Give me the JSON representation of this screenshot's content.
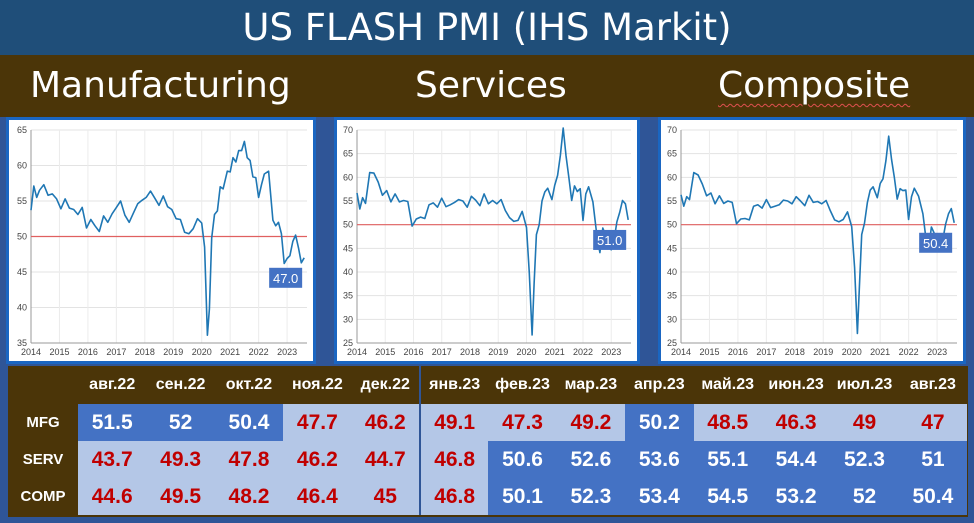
{
  "title": "US FLASH PMI (IHS Markit)",
  "sections": [
    "Manufacturing",
    "Services",
    "Composite"
  ],
  "colors": {
    "line": "#1f77b4",
    "reference": "#e06060",
    "label_box": "#4472c4",
    "increase_text": "#ffffff",
    "decrease_text": "#c00000",
    "cell_light": "#b4c7e7",
    "cell_dark": "#4472c4"
  },
  "chart_data": [
    {
      "type": "line",
      "title": "Manufacturing",
      "ylim": [
        35,
        65
      ],
      "yticks": [
        35,
        40,
        45,
        50,
        55,
        60,
        65
      ],
      "xlim": [
        2014,
        2023.7
      ],
      "xticks": [
        2014,
        2015,
        2016,
        2017,
        2018,
        2019,
        2020,
        2021,
        2022,
        2023
      ],
      "reference_line": 50,
      "last_value_label": "47.0",
      "x": [
        2014.0,
        2014.1,
        2014.2,
        2014.3,
        2014.45,
        2014.6,
        2014.75,
        2014.9,
        2015.05,
        2015.2,
        2015.35,
        2015.5,
        2015.65,
        2015.8,
        2015.95,
        2016.1,
        2016.25,
        2016.4,
        2016.55,
        2016.7,
        2016.85,
        2017.0,
        2017.15,
        2017.3,
        2017.45,
        2017.6,
        2017.75,
        2017.9,
        2018.05,
        2018.2,
        2018.35,
        2018.5,
        2018.65,
        2018.8,
        2018.95,
        2019.1,
        2019.25,
        2019.4,
        2019.55,
        2019.7,
        2019.85,
        2020.0,
        2020.1,
        2020.2,
        2020.27,
        2020.35,
        2020.45,
        2020.55,
        2020.65,
        2020.75,
        2020.9,
        2021.0,
        2021.1,
        2021.2,
        2021.3,
        2021.4,
        2021.5,
        2021.6,
        2021.7,
        2021.8,
        2021.9,
        2022.0,
        2022.1,
        2022.2,
        2022.35,
        2022.5,
        2022.6,
        2022.7,
        2022.8,
        2022.9,
        2023.0,
        2023.1,
        2023.2,
        2023.3,
        2023.4,
        2023.5,
        2023.6
      ],
      "y": [
        53.7,
        57.1,
        55.5,
        56.5,
        57.3,
        55.8,
        56.0,
        55.3,
        53.9,
        55.3,
        54.0,
        53.8,
        53.1,
        54.1,
        51.2,
        52.4,
        51.5,
        50.7,
        52.9,
        52.0,
        53.2,
        54.1,
        55.0,
        53.0,
        52.0,
        53.3,
        54.6,
        55.1,
        55.5,
        56.4,
        55.4,
        54.4,
        55.7,
        54.2,
        53.8,
        52.5,
        52.4,
        50.6,
        50.4,
        51.1,
        52.5,
        51.9,
        48.5,
        36.1,
        39.8,
        49.8,
        53.1,
        53.6,
        57.0,
        56.7,
        59.2,
        59.1,
        61.1,
        60.5,
        62.1,
        62.1,
        63.4,
        61.1,
        60.7,
        58.4,
        58.3,
        55.5,
        57.3,
        58.8,
        59.2,
        52.3,
        51.5,
        52.0,
        50.4,
        46.2,
        46.9,
        47.3,
        49.3,
        50.2,
        48.4,
        46.3,
        47.0
      ]
    },
    {
      "type": "line",
      "title": "Services",
      "ylim": [
        25,
        70
      ],
      "yticks": [
        25,
        30,
        35,
        40,
        45,
        50,
        55,
        60,
        65,
        70
      ],
      "xlim": [
        2014,
        2023.7
      ],
      "xticks": [
        2014,
        2015,
        2016,
        2017,
        2018,
        2019,
        2020,
        2021,
        2022,
        2023
      ],
      "reference_line": 50,
      "last_value_label": "51.0",
      "x": [
        2014.0,
        2014.1,
        2014.2,
        2014.3,
        2014.45,
        2014.6,
        2014.75,
        2014.9,
        2015.05,
        2015.2,
        2015.35,
        2015.5,
        2015.65,
        2015.8,
        2015.95,
        2016.1,
        2016.25,
        2016.4,
        2016.55,
        2016.7,
        2016.85,
        2017.0,
        2017.15,
        2017.3,
        2017.45,
        2017.6,
        2017.75,
        2017.9,
        2018.05,
        2018.2,
        2018.35,
        2018.5,
        2018.65,
        2018.8,
        2018.95,
        2019.1,
        2019.25,
        2019.4,
        2019.55,
        2019.7,
        2019.85,
        2020.0,
        2020.1,
        2020.2,
        2020.27,
        2020.35,
        2020.45,
        2020.55,
        2020.65,
        2020.75,
        2020.9,
        2021.0,
        2021.1,
        2021.2,
        2021.3,
        2021.4,
        2021.5,
        2021.6,
        2021.7,
        2021.8,
        2021.9,
        2022.0,
        2022.1,
        2022.2,
        2022.35,
        2022.5,
        2022.6,
        2022.7,
        2022.8,
        2022.9,
        2023.0,
        2023.1,
        2023.2,
        2023.3,
        2023.4,
        2023.5,
        2023.6
      ],
      "y": [
        56.7,
        53.3,
        55.7,
        54.5,
        61.0,
        60.9,
        59.0,
        56.2,
        57.2,
        54.8,
        56.5,
        54.8,
        55.1,
        54.9,
        49.7,
        51.2,
        51.6,
        51.3,
        54.2,
        54.6,
        53.7,
        55.6,
        53.8,
        54.2,
        54.7,
        55.3,
        55.0,
        53.7,
        56.0,
        55.2,
        54.0,
        56.5,
        54.4,
        55.1,
        54.4,
        55.3,
        53.0,
        51.5,
        50.7,
        50.9,
        52.8,
        49.4,
        39.8,
        26.7,
        37.5,
        47.9,
        50.0,
        55.0,
        56.9,
        57.7,
        55.3,
        58.3,
        60.4,
        64.7,
        70.4,
        64.6,
        59.9,
        55.1,
        58.2,
        57.0,
        57.6,
        50.9,
        56.5,
        58.0,
        54.8,
        47.3,
        44.1,
        49.3,
        47.8,
        46.2,
        44.7,
        46.8,
        50.6,
        52.6,
        55.1,
        54.4,
        51.0
      ]
    },
    {
      "type": "line",
      "title": "Composite",
      "ylim": [
        25,
        70
      ],
      "yticks": [
        25,
        30,
        35,
        40,
        45,
        50,
        55,
        60,
        65,
        70
      ],
      "xlim": [
        2014,
        2023.7
      ],
      "xticks": [
        2014,
        2015,
        2016,
        2017,
        2018,
        2019,
        2020,
        2021,
        2022,
        2023
      ],
      "reference_line": 50,
      "last_value_label": "50.4",
      "x": [
        2014.0,
        2014.1,
        2014.2,
        2014.3,
        2014.45,
        2014.6,
        2014.75,
        2014.9,
        2015.05,
        2015.2,
        2015.35,
        2015.5,
        2015.65,
        2015.8,
        2015.95,
        2016.1,
        2016.25,
        2016.4,
        2016.55,
        2016.7,
        2016.85,
        2017.0,
        2017.15,
        2017.3,
        2017.45,
        2017.6,
        2017.75,
        2017.9,
        2018.05,
        2018.2,
        2018.35,
        2018.5,
        2018.65,
        2018.8,
        2018.95,
        2019.1,
        2019.25,
        2019.4,
        2019.55,
        2019.7,
        2019.85,
        2020.0,
        2020.1,
        2020.2,
        2020.27,
        2020.35,
        2020.45,
        2020.55,
        2020.65,
        2020.75,
        2020.9,
        2021.0,
        2021.1,
        2021.2,
        2021.3,
        2021.4,
        2021.5,
        2021.6,
        2021.7,
        2021.8,
        2021.9,
        2022.0,
        2022.1,
        2022.2,
        2022.35,
        2022.5,
        2022.6,
        2022.7,
        2022.8,
        2022.9,
        2023.0,
        2023.1,
        2023.2,
        2023.3,
        2023.4,
        2023.5,
        2023.6
      ],
      "y": [
        56.3,
        53.9,
        55.9,
        55.3,
        61.0,
        60.5,
        58.6,
        56.1,
        56.7,
        54.4,
        56.1,
        54.5,
        55.0,
        54.7,
        50.2,
        51.2,
        51.3,
        51.0,
        53.9,
        54.2,
        53.5,
        55.3,
        53.6,
        53.9,
        54.2,
        55.2,
        55.0,
        54.4,
        55.9,
        55.0,
        54.0,
        56.2,
        54.7,
        54.9,
        54.4,
        55.1,
        52.9,
        51.0,
        50.6,
        51.1,
        52.7,
        49.6,
        40.9,
        27.0,
        36.9,
        47.9,
        50.3,
        54.7,
        57.3,
        58.0,
        55.7,
        58.7,
        59.7,
        63.5,
        68.7,
        63.7,
        59.9,
        55.4,
        57.6,
        57.2,
        57.3,
        51.1,
        55.9,
        57.7,
        56.0,
        52.3,
        47.5,
        44.6,
        49.5,
        48.2,
        46.4,
        45.0,
        46.8,
        50.1,
        52.3,
        53.4,
        50.4
      ]
    }
  ],
  "table": {
    "months": [
      "авг.22",
      "сен.22",
      "окт.22",
      "ноя.22",
      "дек.22",
      "янв.23",
      "фев.23",
      "мар.23",
      "апр.23",
      "май.23",
      "июн.23",
      "июл.23",
      "авг.23"
    ],
    "rows": [
      {
        "label": "MFG",
        "values": [
          "51.5",
          "52",
          "50.4",
          "47.7",
          "46.2",
          "49.1",
          "47.3",
          "49.2",
          "50.2",
          "48.5",
          "46.3",
          "49",
          "47"
        ],
        "trend": [
          "up",
          "up",
          "up",
          "down",
          "down",
          "down",
          "down",
          "down",
          "up",
          "down",
          "down",
          "down",
          "down"
        ],
        "shade": [
          "dark",
          "dark",
          "dark",
          "light",
          "light",
          "light",
          "light",
          "light",
          "dark",
          "light",
          "light",
          "light",
          "light"
        ]
      },
      {
        "label": "SERV",
        "values": [
          "43.7",
          "49.3",
          "47.8",
          "46.2",
          "44.7",
          "46.8",
          "50.6",
          "52.6",
          "53.6",
          "55.1",
          "54.4",
          "52.3",
          "51"
        ],
        "trend": [
          "down",
          "down",
          "down",
          "down",
          "down",
          "down",
          "up",
          "up",
          "up",
          "up",
          "up",
          "up",
          "up"
        ],
        "shade": [
          "light",
          "light",
          "light",
          "light",
          "light",
          "light",
          "dark",
          "dark",
          "dark",
          "dark",
          "dark",
          "dark",
          "dark"
        ]
      },
      {
        "label": "COMP",
        "values": [
          "44.6",
          "49.5",
          "48.2",
          "46.4",
          "45",
          "46.8",
          "50.1",
          "52.3",
          "53.4",
          "54.5",
          "53.2",
          "52",
          "50.4"
        ],
        "trend": [
          "down",
          "down",
          "down",
          "down",
          "down",
          "down",
          "up",
          "up",
          "up",
          "up",
          "up",
          "up",
          "up"
        ],
        "shade": [
          "light",
          "light",
          "light",
          "light",
          "light",
          "light",
          "dark",
          "dark",
          "dark",
          "dark",
          "dark",
          "dark",
          "dark"
        ]
      }
    ]
  }
}
